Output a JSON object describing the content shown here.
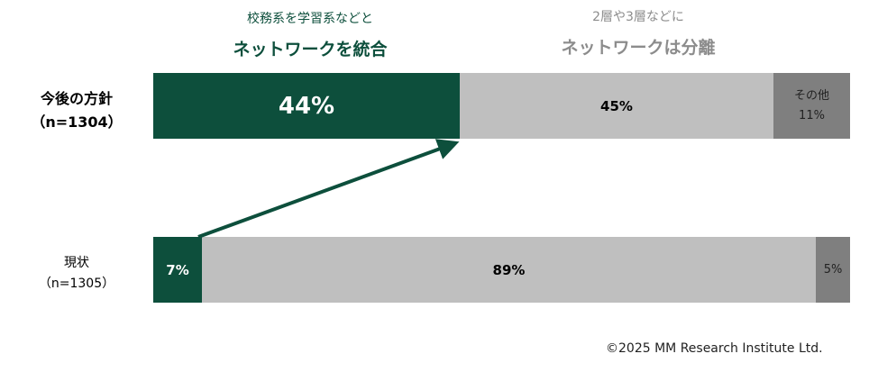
{
  "headers": {
    "left_small": "校務系を学習系などと",
    "left_big": "ネットワークを統合",
    "right_small": "2層や3層などに",
    "right_big": "ネットワークは分離"
  },
  "chart_data": {
    "type": "bar",
    "orientation": "horizontal-stacked-100",
    "categories": [
      "今後の方針",
      "現状"
    ],
    "category_sublabels": [
      "（n=1304）",
      "（n=1305）"
    ],
    "series": [
      {
        "values": [
          44,
          7
        ],
        "labels": [
          "44%",
          "7%"
        ],
        "color": "#0d4f3c"
      },
      {
        "values": [
          45,
          89
        ],
        "labels": [
          "45%",
          "89%"
        ],
        "color": "#bfbfbf"
      },
      {
        "values": [
          11,
          5
        ],
        "labels": [
          "11%",
          "5%"
        ],
        "color": "#7f7f7f"
      }
    ],
    "other_label": "その他"
  },
  "footer": "©2025 MM Research Institute Ltd.",
  "colors": {
    "accent_green": "#0d4f3c",
    "light_gray": "#bfbfbf",
    "dark_gray": "#7f7f7f",
    "header_gray": "#8c8c8c"
  }
}
